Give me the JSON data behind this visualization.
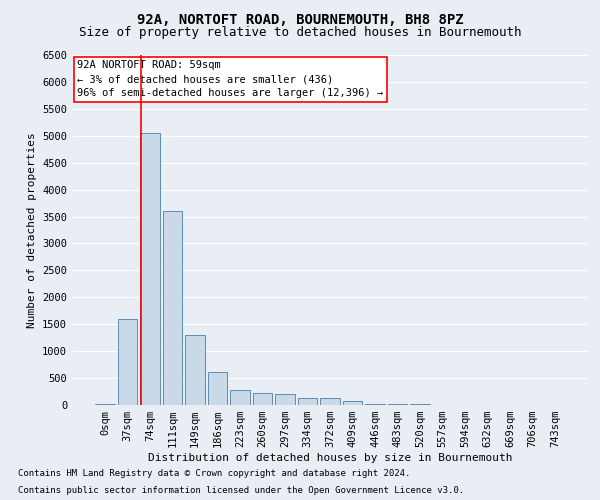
{
  "title": "92A, NORTOFT ROAD, BOURNEMOUTH, BH8 8PZ",
  "subtitle": "Size of property relative to detached houses in Bournemouth",
  "xlabel": "Distribution of detached houses by size in Bournemouth",
  "ylabel": "Number of detached properties",
  "bar_labels": [
    "0sqm",
    "37sqm",
    "74sqm",
    "111sqm",
    "149sqm",
    "186sqm",
    "223sqm",
    "260sqm",
    "297sqm",
    "334sqm",
    "372sqm",
    "409sqm",
    "446sqm",
    "483sqm",
    "520sqm",
    "557sqm",
    "594sqm",
    "632sqm",
    "669sqm",
    "706sqm",
    "743sqm"
  ],
  "bar_values": [
    10,
    1600,
    5050,
    3600,
    1300,
    620,
    270,
    230,
    200,
    130,
    130,
    80,
    20,
    10,
    10,
    0,
    0,
    0,
    0,
    0,
    0
  ],
  "bar_color": "#c9d9e8",
  "bar_edge_color": "#5b8db8",
  "ylim": [
    0,
    6500
  ],
  "yticks": [
    0,
    500,
    1000,
    1500,
    2000,
    2500,
    3000,
    3500,
    4000,
    4500,
    5000,
    5500,
    6000,
    6500
  ],
  "annotation_text_line1": "92A NORTOFT ROAD: 59sqm",
  "annotation_text_line2": "← 3% of detached houses are smaller (436)",
  "annotation_text_line3": "96% of semi-detached houses are larger (12,396) →",
  "footer_line1": "Contains HM Land Registry data © Crown copyright and database right 2024.",
  "footer_line2": "Contains public sector information licensed under the Open Government Licence v3.0.",
  "background_color": "#e8eef4",
  "grid_color": "#ffffff",
  "title_fontsize": 10,
  "subtitle_fontsize": 9,
  "axis_label_fontsize": 8,
  "tick_fontsize": 7.5,
  "annotation_fontsize": 7.5,
  "footer_fontsize": 6.5,
  "ylabel_fontsize": 8
}
